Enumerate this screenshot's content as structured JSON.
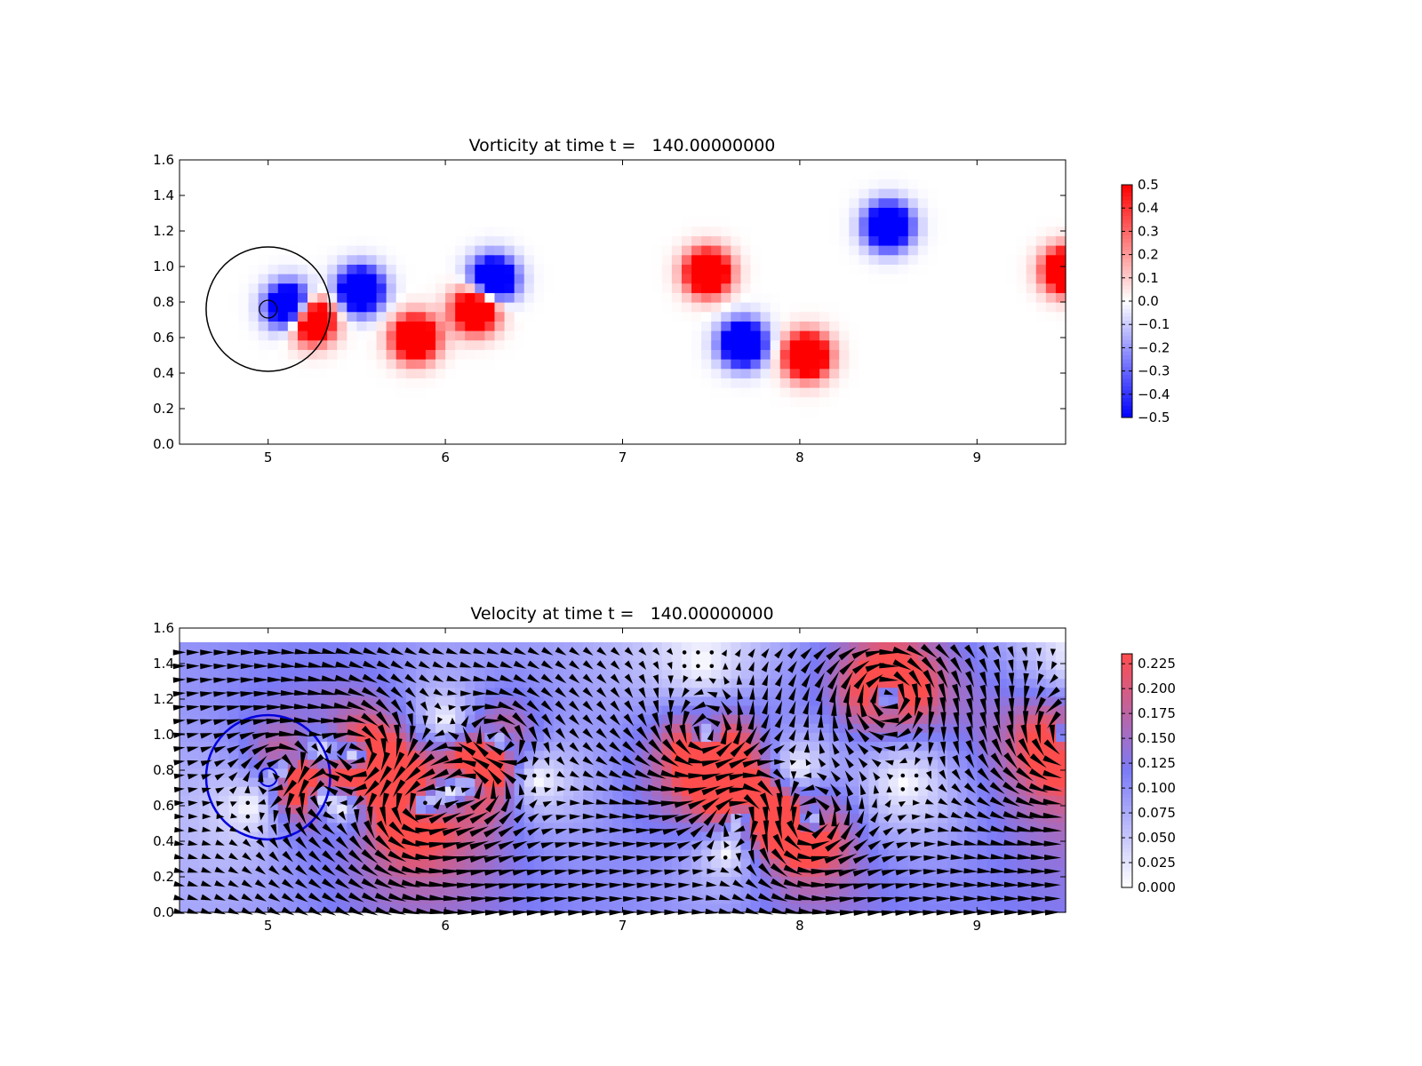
{
  "chart_data": [
    {
      "type": "heatmap",
      "title": "Vorticity at time t =   140.00000000",
      "xlabel": "",
      "ylabel": "",
      "xlim": [
        4.5,
        9.5
      ],
      "ylim": [
        0.0,
        1.6
      ],
      "xticks": [
        "5",
        "6",
        "7",
        "8",
        "9"
      ],
      "yticks": [
        "0.0",
        "0.2",
        "0.4",
        "0.6",
        "0.8",
        "1.0",
        "1.2",
        "1.4",
        "1.6"
      ],
      "colorbar": {
        "range": [
          -0.5,
          0.5
        ],
        "ticks": [
          "0.5",
          "0.4",
          "0.3",
          "0.2",
          "0.1",
          "0.0",
          "−0.1",
          "−0.2",
          "−0.3",
          "−0.4",
          "−0.5"
        ],
        "colors": [
          "#0000ff",
          "#ffffff",
          "#ff0000"
        ]
      },
      "cylinder": {
        "cx": 5.0,
        "cy": 0.76,
        "r": 0.05
      },
      "outer_circle": {
        "cx": 5.0,
        "cy": 0.76,
        "r": 0.35
      },
      "vortices": [
        {
          "x": 5.12,
          "y": 0.78,
          "strength": -0.5
        },
        {
          "x": 5.25,
          "y": 0.7,
          "strength": 0.5
        },
        {
          "x": 5.52,
          "y": 0.87,
          "strength": -0.5
        },
        {
          "x": 5.83,
          "y": 0.6,
          "strength": 0.5
        },
        {
          "x": 6.17,
          "y": 0.76,
          "strength": 0.5
        },
        {
          "x": 6.27,
          "y": 0.93,
          "strength": -0.5
        },
        {
          "x": 7.48,
          "y": 0.97,
          "strength": 0.5
        },
        {
          "x": 7.68,
          "y": 0.57,
          "strength": -0.5
        },
        {
          "x": 8.04,
          "y": 0.5,
          "strength": 0.5
        },
        {
          "x": 8.5,
          "y": 1.23,
          "strength": -0.5
        },
        {
          "x": 9.5,
          "y": 0.98,
          "strength": 0.5
        }
      ]
    },
    {
      "type": "heatmap",
      "title": "Velocity at time t =   140.00000000",
      "xlabel": "",
      "ylabel": "",
      "xlim": [
        4.5,
        9.5
      ],
      "ylim": [
        0.0,
        1.6
      ],
      "xticks": [
        "5",
        "6",
        "7",
        "8",
        "9"
      ],
      "yticks": [
        "0.0",
        "0.2",
        "0.4",
        "0.6",
        "0.8",
        "1.0",
        "1.2",
        "1.4",
        "1.6"
      ],
      "colorbar": {
        "range": [
          0.0,
          0.235
        ],
        "ticks": [
          "0.225",
          "0.200",
          "0.175",
          "0.150",
          "0.125",
          "0.100",
          "0.075",
          "0.050",
          "0.025",
          "0.000"
        ],
        "colors": [
          "#ffffff",
          "#7b7bf7",
          "#ff4d4d"
        ]
      },
      "quiver": {
        "x_start": 4.5,
        "x_step": 0.077,
        "y_start": 0.0,
        "y_step": 0.077
      },
      "cylinder": {
        "cx": 5.0,
        "cy": 0.76,
        "r": 0.05
      },
      "outer_circle": {
        "cx": 5.0,
        "cy": 0.76,
        "r": 0.35
      },
      "data_top": 1.52,
      "vortices": [
        {
          "x": 5.12,
          "y": 0.78,
          "strength": -0.5
        },
        {
          "x": 5.25,
          "y": 0.7,
          "strength": 0.5
        },
        {
          "x": 5.52,
          "y": 0.87,
          "strength": -0.5
        },
        {
          "x": 5.83,
          "y": 0.6,
          "strength": 0.5
        },
        {
          "x": 6.17,
          "y": 0.76,
          "strength": 0.5
        },
        {
          "x": 6.27,
          "y": 0.93,
          "strength": -0.5
        },
        {
          "x": 7.48,
          "y": 0.97,
          "strength": 0.5
        },
        {
          "x": 7.68,
          "y": 0.57,
          "strength": -0.5
        },
        {
          "x": 8.04,
          "y": 0.5,
          "strength": 0.5
        },
        {
          "x": 8.5,
          "y": 1.23,
          "strength": -0.5
        },
        {
          "x": 9.5,
          "y": 0.98,
          "strength": 0.5
        }
      ]
    }
  ]
}
